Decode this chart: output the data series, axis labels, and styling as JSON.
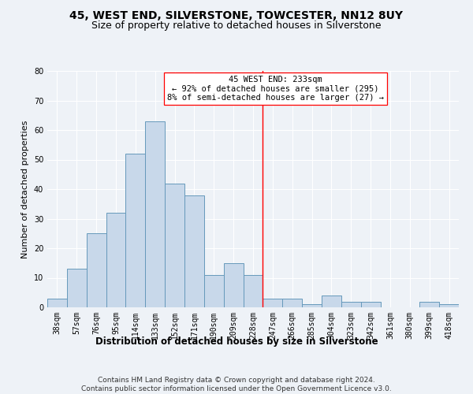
{
  "title": "45, WEST END, SILVERSTONE, TOWCESTER, NN12 8UY",
  "subtitle": "Size of property relative to detached houses in Silverstone",
  "xlabel": "Distribution of detached houses by size in Silverstone",
  "ylabel": "Number of detached properties",
  "categories": [
    "38sqm",
    "57sqm",
    "76sqm",
    "95sqm",
    "114sqm",
    "133sqm",
    "152sqm",
    "171sqm",
    "190sqm",
    "209sqm",
    "228sqm",
    "247sqm",
    "266sqm",
    "285sqm",
    "304sqm",
    "323sqm",
    "342sqm",
    "361sqm",
    "380sqm",
    "399sqm",
    "418sqm"
  ],
  "values": [
    3,
    13,
    25,
    32,
    52,
    63,
    42,
    38,
    11,
    15,
    11,
    3,
    3,
    1,
    4,
    2,
    2,
    0,
    0,
    2,
    1
  ],
  "bar_color": "#c8d8ea",
  "bar_edge_color": "#6699bb",
  "red_line_x": 10.5,
  "annotation_text": "45 WEST END: 233sqm\n← 92% of detached houses are smaller (295)\n8% of semi-detached houses are larger (27) →",
  "ylim": [
    0,
    80
  ],
  "yticks": [
    0,
    10,
    20,
    30,
    40,
    50,
    60,
    70,
    80
  ],
  "footer": "Contains HM Land Registry data © Crown copyright and database right 2024.\nContains public sector information licensed under the Open Government Licence v3.0.",
  "bg_color": "#eef2f7",
  "plot_bg_color": "#eef2f7",
  "grid_color": "#ffffff",
  "title_fontsize": 10,
  "subtitle_fontsize": 9,
  "ylabel_fontsize": 8,
  "xlabel_fontsize": 8.5,
  "tick_fontsize": 7,
  "annotation_fontsize": 7.5,
  "footer_fontsize": 6.5
}
